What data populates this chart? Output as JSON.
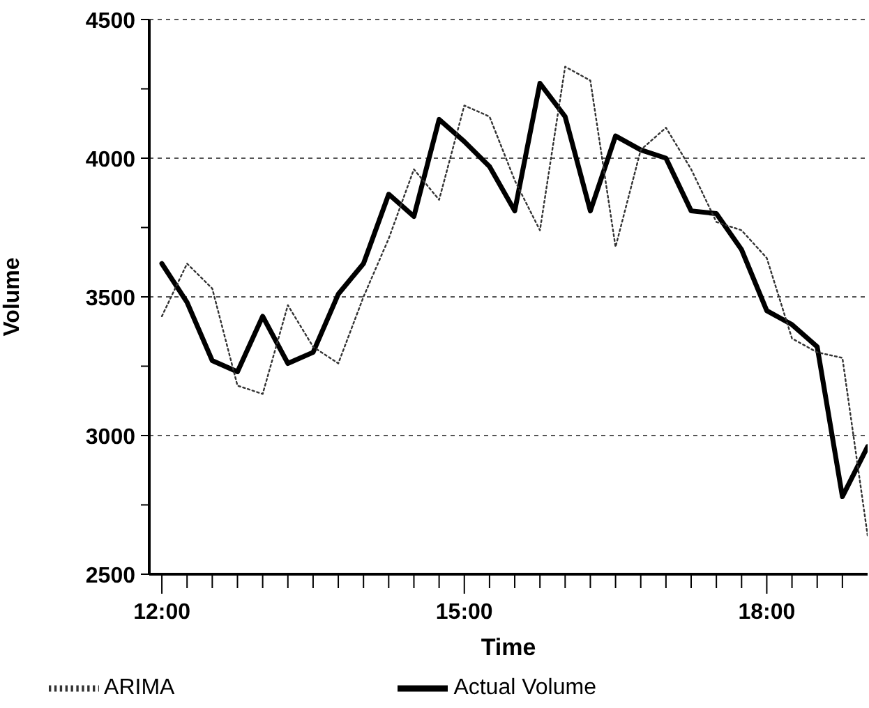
{
  "chart_data": {
    "type": "line",
    "xlabel": "Time",
    "ylabel": "Volume",
    "x": [
      12,
      12.25,
      12.5,
      12.75,
      13,
      13.25,
      13.5,
      13.75,
      14,
      14.25,
      14.5,
      14.75,
      15,
      15.25,
      15.5,
      15.75,
      16,
      16.25,
      16.5,
      16.75,
      17,
      17.25,
      17.5,
      17.75,
      18,
      18.25,
      18.5,
      18.75,
      19
    ],
    "series": [
      {
        "name": "Actual Volume",
        "color": "#000000",
        "line_style": "solid",
        "values": [
          3620,
          3480,
          3270,
          3230,
          3430,
          3260,
          3300,
          3510,
          3620,
          3870,
          3790,
          4140,
          4060,
          3970,
          3810,
          4270,
          4150,
          3810,
          4080,
          4030,
          4000,
          3810,
          3800,
          3670,
          3450,
          3400,
          3320,
          2780,
          2960
        ]
      },
      {
        "name": "ARIMA",
        "color": "#333333",
        "line_style": "dotted",
        "values": [
          3430,
          3620,
          3530,
          3180,
          3150,
          3470,
          3320,
          3260,
          3500,
          3710,
          3960,
          3850,
          4190,
          4150,
          3920,
          3740,
          4330,
          4280,
          3680,
          4030,
          4110,
          3960,
          3770,
          3740,
          3640,
          3350,
          3300,
          3280,
          2640
        ]
      }
    ],
    "xlim": [
      11.875,
      19.0
    ],
    "xticks": [
      {
        "value": 12,
        "label": "12:00"
      },
      {
        "value": 12.25,
        "label": null
      },
      {
        "value": 12.5,
        "label": null
      },
      {
        "value": 12.75,
        "label": null
      },
      {
        "value": 13,
        "label": null
      },
      {
        "value": 13.25,
        "label": null
      },
      {
        "value": 13.5,
        "label": null
      },
      {
        "value": 13.75,
        "label": null
      },
      {
        "value": 14,
        "label": null
      },
      {
        "value": 14.25,
        "label": null
      },
      {
        "value": 14.5,
        "label": null
      },
      {
        "value": 14.75,
        "label": null
      },
      {
        "value": 15,
        "label": "15:00"
      },
      {
        "value": 15.25,
        "label": null
      },
      {
        "value": 15.5,
        "label": null
      },
      {
        "value": 15.75,
        "label": null
      },
      {
        "value": 16,
        "label": null
      },
      {
        "value": 16.25,
        "label": null
      },
      {
        "value": 16.5,
        "label": null
      },
      {
        "value": 16.75,
        "label": null
      },
      {
        "value": 17,
        "label": null
      },
      {
        "value": 17.25,
        "label": null
      },
      {
        "value": 17.5,
        "label": null
      },
      {
        "value": 17.75,
        "label": null
      },
      {
        "value": 18,
        "label": "18:00"
      },
      {
        "value": 18.25,
        "label": null
      },
      {
        "value": 18.5,
        "label": null
      },
      {
        "value": 18.75,
        "label": null
      }
    ],
    "ylim": [
      2500,
      4500
    ],
    "yticks": [
      2500,
      {
        "value": 2750,
        "label": null
      },
      3000,
      {
        "value": 3250,
        "label": null
      },
      3500,
      {
        "value": 3750,
        "label": null
      },
      4000,
      {
        "value": 4250,
        "label": null
      },
      4500
    ],
    "grid": "y",
    "legend": "bottom",
    "marker": "none"
  }
}
